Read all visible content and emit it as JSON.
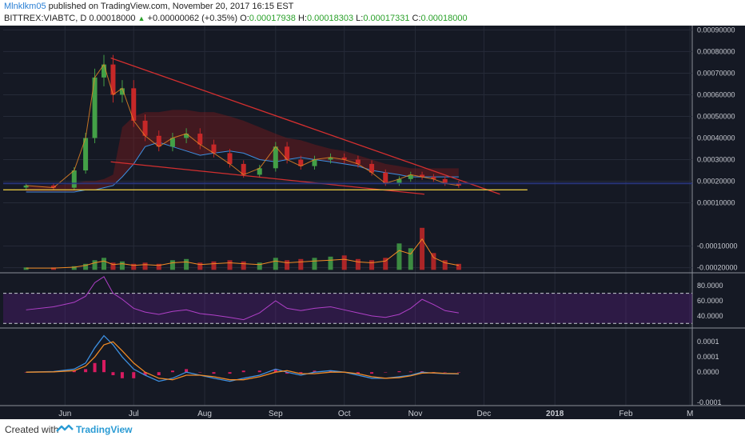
{
  "header": {
    "author": "Mlnklkm05",
    "published_text": "published on TradingView.com, November 20, 2017 16:15 EST",
    "symbol": "BITTREX:VIABTC, D",
    "price": "0.00018000",
    "change_arrow": "▲",
    "change": "+0.00000062 (+0.35%)",
    "open_label": "O:",
    "open": "0.00017938",
    "high_label": "H:",
    "high": "0.00018303",
    "low_label": "L:",
    "low": "0.00017331",
    "close_label": "C:",
    "close": "0.00018000"
  },
  "footer": {
    "created_with": "Created with",
    "brand": "TradingView"
  },
  "colors": {
    "background": "#151924",
    "candle_up": "#43a047",
    "candle_down": "#c62828",
    "trendline": "#d32f2f",
    "support": "#e0c341",
    "rsi": "#b040c8",
    "macd": "#3d8fe0",
    "signal": "#f08a24",
    "hist": "#d81b60"
  },
  "chart_data": [
    {
      "type": "candlestick",
      "panel": "price",
      "y_axis_ticks": [
        "0.00090000",
        "0.00080000",
        "0.00070000",
        "0.00060000",
        "0.00050000",
        "0.00040000",
        "0.00030000",
        "0.00020000",
        "0.00010000",
        "-0.00010000",
        "-0.00020000"
      ],
      "ylim": [
        -0.00022,
        0.00092
      ],
      "x_labels": [
        "Jun",
        "Jul",
        "Aug",
        "Sep",
        "Oct",
        "Nov",
        "Dec",
        "2018",
        "Feb",
        "M"
      ],
      "x": [
        "2017-05-15",
        "2017-05-27",
        "2017-06-05",
        "2017-06-10",
        "2017-06-14",
        "2017-06-18",
        "2017-06-22",
        "2017-06-26",
        "2017-07-01",
        "2017-07-06",
        "2017-07-12",
        "2017-07-18",
        "2017-07-24",
        "2017-07-30",
        "2017-08-05",
        "2017-08-12",
        "2017-08-18",
        "2017-08-25",
        "2017-09-01",
        "2017-09-06",
        "2017-09-12",
        "2017-09-18",
        "2017-09-25",
        "2017-10-01",
        "2017-10-07",
        "2017-10-13",
        "2017-10-19",
        "2017-10-25",
        "2017-10-30",
        "2017-11-04",
        "2017-11-09",
        "2017-11-14",
        "2017-11-20"
      ],
      "close": [
        0.00018,
        0.00017,
        0.00025,
        0.0004,
        0.00068,
        0.00074,
        0.0006,
        0.00063,
        0.00048,
        0.00041,
        0.00036,
        0.0004,
        0.00042,
        0.00037,
        0.00033,
        0.00028,
        0.00023,
        0.00026,
        0.00036,
        0.0003,
        0.00027,
        0.0003,
        0.00031,
        0.0003,
        0.00028,
        0.00024,
        0.00019,
        0.00021,
        0.00023,
        0.00022,
        0.00021,
        0.00019,
        0.00018
      ],
      "ichimoku_cloud_top": [
        0.00018,
        0.00018,
        0.00019,
        0.0002,
        0.0002,
        0.00021,
        0.00023,
        0.00045,
        0.0005,
        0.00052,
        0.00052,
        0.00053,
        0.00053,
        0.00052,
        0.00052,
        0.0005,
        0.00048,
        0.00045,
        0.00042,
        0.0004,
        0.00039,
        0.00037,
        0.00035,
        0.00034,
        0.00032,
        0.0003,
        0.00028,
        0.00027,
        0.00026,
        0.00026,
        0.00026,
        0.00026,
        0.00026
      ],
      "ichimoku_cloud_bottom": [
        0.00015,
        0.00015,
        0.00015,
        0.00016,
        0.00016,
        0.00017,
        0.00018,
        0.00022,
        0.00028,
        0.00036,
        0.00038,
        0.00036,
        0.00034,
        0.00032,
        0.00033,
        0.00034,
        0.00033,
        0.0003,
        0.00029,
        0.0003,
        0.00031,
        0.0003,
        0.00029,
        0.00028,
        0.00027,
        0.00025,
        0.00024,
        0.00023,
        0.00022,
        0.00022,
        0.00022,
        0.00022,
        0.00022
      ],
      "trendline_upper": [
        [
          "2017-06-21",
          0.00077
        ],
        [
          "2017-12-08",
          0.00014
        ]
      ],
      "trendline_lower": [
        [
          "2017-06-21",
          0.00029
        ],
        [
          "2017-11-05",
          0.00014
        ]
      ],
      "support_level": 0.00016,
      "volume": [
        0.02,
        0.02,
        0.03,
        0.05,
        0.08,
        0.1,
        0.06,
        0.07,
        0.05,
        0.06,
        0.05,
        0.08,
        0.09,
        0.06,
        0.07,
        0.08,
        0.07,
        0.06,
        0.1,
        0.08,
        0.09,
        0.1,
        0.11,
        0.12,
        0.09,
        0.08,
        0.1,
        0.22,
        0.18,
        0.35,
        0.14,
        0.08,
        0.05
      ]
    },
    {
      "type": "line",
      "panel": "rsi",
      "name": "RSI",
      "y_axis_ticks": [
        "80.0000",
        "60.0000",
        "40.0000"
      ],
      "ylim": [
        25,
        95
      ],
      "band": [
        30,
        70
      ],
      "values": [
        48,
        52,
        58,
        66,
        84,
        92,
        70,
        62,
        50,
        45,
        42,
        46,
        48,
        43,
        41,
        38,
        35,
        44,
        60,
        50,
        47,
        50,
        52,
        48,
        44,
        40,
        38,
        42,
        50,
        62,
        55,
        47,
        44
      ]
    },
    {
      "type": "line",
      "panel": "macd",
      "y_axis_ticks": [
        "0.0001",
        "0.0001",
        "0.0000",
        "-0.0001"
      ],
      "ylim": [
        -0.00011,
        0.00014
      ],
      "series": [
        {
          "values": [
            0.0,
            2e-06,
            1e-05,
            3e-05,
            8e-05,
            0.00012,
            9e-05,
            5e-05,
            1e-05,
            -1e-05,
            -3e-05,
            -2e-05,
            0.0,
            -1e-05,
            -2e-05,
            -3e-05,
            -2e-05,
            -1e-05,
            1e-05,
            0.0,
            -1e-05,
            0.0,
            5e-06,
            0.0,
            -1e-05,
            -2e-05,
            -2e-05,
            -1.5e-05,
            -1e-05,
            0.0,
            -3e-06,
            -5e-06,
            -6e-06
          ]
        },
        {
          "values": [
            0.0,
            1e-06,
            5e-06,
            2e-05,
            5e-05,
            9e-05,
            0.0001,
            7e-05,
            3e-05,
            0.0,
            -2e-05,
            -2.5e-05,
            -1e-05,
            -1e-05,
            -1.5e-05,
            -2.5e-05,
            -2.5e-05,
            -1.5e-05,
            0.0,
            5e-06,
            -5e-06,
            -5e-06,
            0.0,
            0.0,
            -5e-06,
            -1.5e-05,
            -2e-05,
            -1.8e-05,
            -1.2e-05,
            -3e-06,
            -2e-06,
            -4e-06,
            -5e-06
          ]
        }
      ],
      "histogram": [
        0.0,
        1e-06,
        5e-06,
        1e-05,
        3e-05,
        4e-05,
        -1e-05,
        -2e-05,
        -2e-05,
        -1e-05,
        -1e-05,
        5e-06,
        1e-05,
        0.0,
        -5e-06,
        -5e-06,
        5e-06,
        5e-06,
        1e-05,
        -5e-06,
        -5e-06,
        5e-06,
        5e-06,
        0.0,
        -5e-06,
        -5e-06,
        0.0,
        3e-06,
        2e-06,
        3e-06,
        -1e-06,
        -1e-06,
        -1e-06
      ]
    }
  ]
}
